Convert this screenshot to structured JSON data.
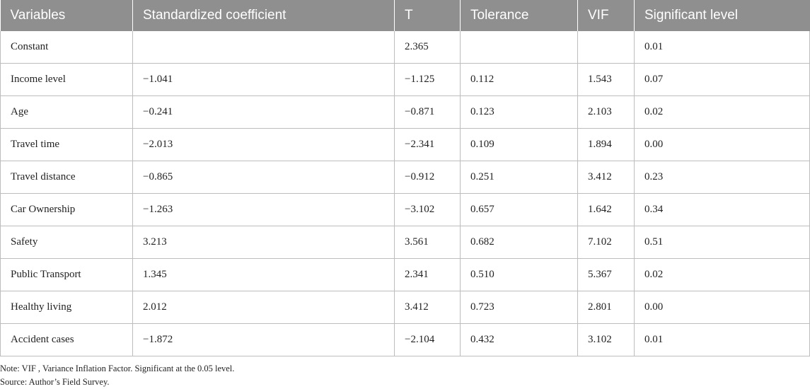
{
  "table": {
    "headers": [
      "Variables",
      "Standardized coefficient",
      "T",
      "Tolerance",
      "VIF",
      "Significant level"
    ],
    "rows": [
      [
        "Constant",
        "",
        "2.365",
        "",
        "",
        "0.01"
      ],
      [
        "Income level",
        "−1.041",
        "−1.125",
        "0.112",
        "1.543",
        "0.07"
      ],
      [
        "Age",
        "−0.241",
        "−0.871",
        "0.123",
        "2.103",
        "0.02"
      ],
      [
        "Travel time",
        "−2.013",
        "−2.341",
        "0.109",
        "1.894",
        "0.00"
      ],
      [
        "Travel distance",
        "−0.865",
        "−0.912",
        "0.251",
        "3.412",
        "0.23"
      ],
      [
        "Car Ownership",
        "−1.263",
        "−3.102",
        "0.657",
        "1.642",
        "0.34"
      ],
      [
        "Safety",
        "3.213",
        "3.561",
        "0.682",
        "7.102",
        "0.51"
      ],
      [
        "Public Transport",
        "1.345",
        "2.341",
        "0.510",
        "5.367",
        "0.02"
      ],
      [
        "Healthy living",
        "2.012",
        "3.412",
        "0.723",
        "2.801",
        "0.00"
      ],
      [
        "Accident cases",
        "−1.872",
        "−2.104",
        "0.432",
        "3.102",
        "0.01"
      ]
    ]
  },
  "notes": {
    "note": "Note: VIF , Variance Inflation Factor. Significant at the 0.05 level.",
    "source": "Source: Author’s Field Survey."
  }
}
